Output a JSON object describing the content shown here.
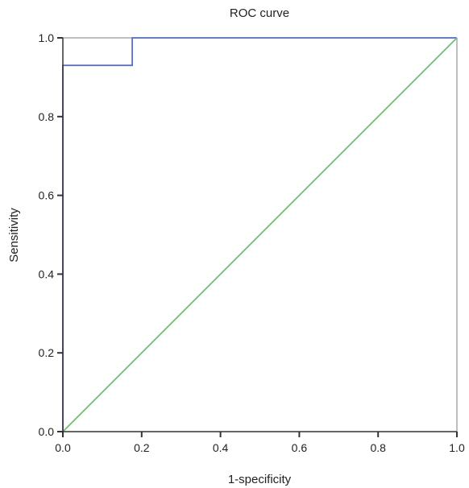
{
  "chart_data": {
    "type": "line",
    "title": "ROC curve",
    "xlabel": "1-specificity",
    "ylabel": "Sensitivity",
    "xlim": [
      0,
      1
    ],
    "ylim": [
      0,
      1
    ],
    "x_ticks": [
      0.0,
      0.2,
      0.4,
      0.6,
      0.8,
      1.0
    ],
    "x_tick_labels": [
      "0.0",
      "0.2",
      "0.4",
      "0.6",
      "0.8",
      "1.0"
    ],
    "y_ticks": [
      0.0,
      0.2,
      0.4,
      0.6,
      0.8,
      1.0
    ],
    "y_tick_labels": [
      "0.0",
      "0.2",
      "0.4",
      "0.6",
      "0.8",
      "1.0"
    ],
    "grid": false,
    "legend": "none",
    "series": [
      {
        "x": [
          0.0,
          0.0,
          0.176,
          0.176,
          1.0
        ],
        "y": [
          0.0,
          0.93,
          0.93,
          1.0,
          1.0
        ],
        "color": "#5b6fc4"
      },
      {
        "x": [
          0.0,
          1.0
        ],
        "y": [
          0.0,
          1.0
        ],
        "color": "#6fbf7a"
      }
    ],
    "frame_color": "#a8a8a8"
  }
}
